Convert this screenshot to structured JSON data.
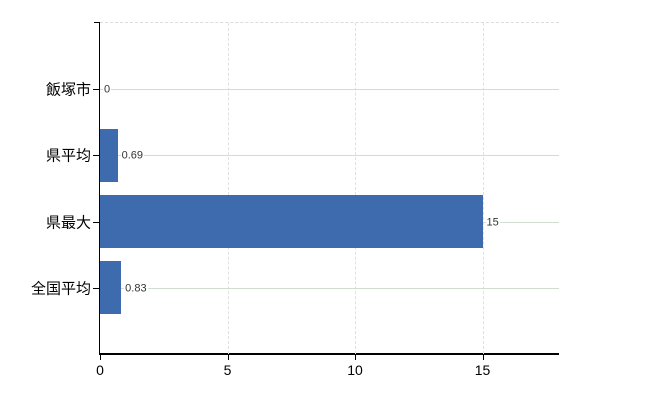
{
  "chart_data": {
    "type": "bar",
    "orientation": "horizontal",
    "categories": [
      "飯塚市",
      "県平均",
      "県最大",
      "全国平均"
    ],
    "values": [
      0,
      0.69,
      15,
      0.83
    ],
    "value_labels": [
      "0",
      "0.69",
      "15",
      "0.83"
    ],
    "x_ticks": [
      0,
      5,
      10,
      15
    ],
    "x_tick_labels": [
      "0",
      "5",
      "10",
      "15"
    ],
    "xlim": [
      0,
      18
    ],
    "title": "",
    "xlabel": "",
    "ylabel": "",
    "legend": null,
    "grid": "on",
    "bar_color": "#3e6bad",
    "horizontal_grid_color": "#d3dcd3",
    "vertical_grid_color": "#e0e0e0",
    "axis_color": "#000000",
    "value_label_color": "#333333",
    "tick_label_color": "#000000"
  }
}
